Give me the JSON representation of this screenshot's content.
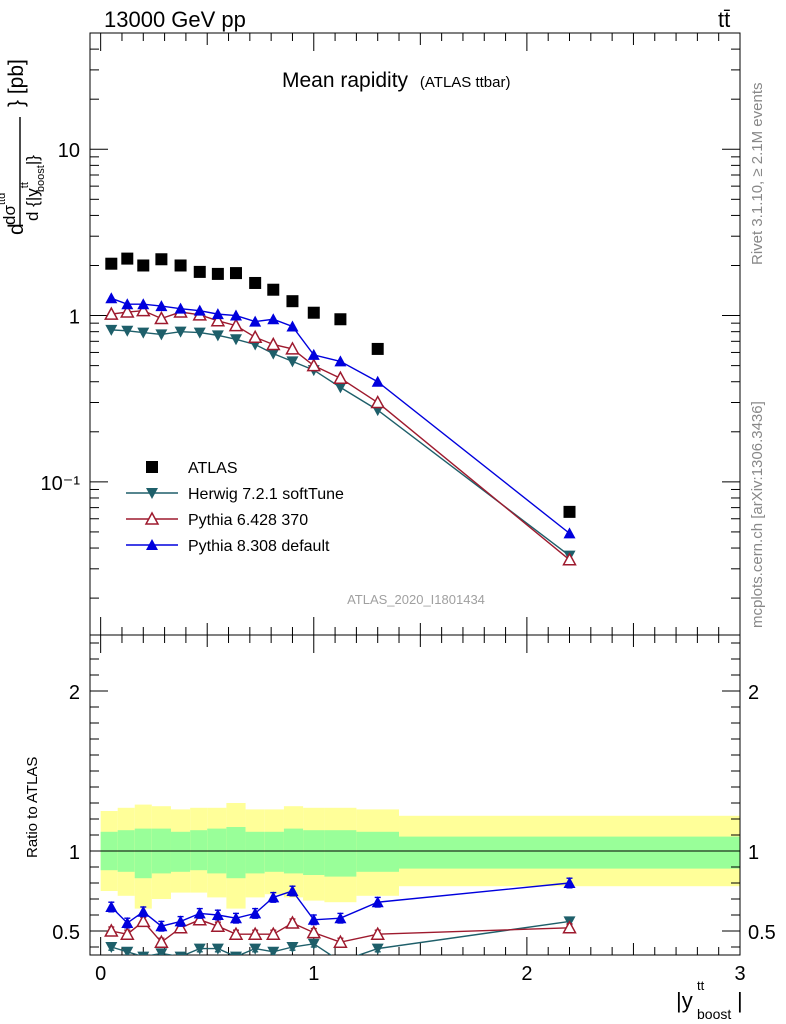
{
  "header": {
    "left": "13000 GeV pp",
    "right": "tt̄"
  },
  "side_labels": {
    "rivet": "Rivet 3.1.10, ≥ 2.1M events",
    "mcplots": "mcplots.cern.ch [arXiv:1306.3436]"
  },
  "analysis_id": "ATLAS_2020_I1801434",
  "colors": {
    "data": "#000000",
    "herwig": "#1e5f6a",
    "pythia6": "#9e1a2e",
    "pythia8": "#0000dd",
    "band_inner": "#99ff99",
    "band_outer": "#ffff99"
  },
  "chart_data": [
    {
      "type": "scatter",
      "title": "Mean rapidity",
      "title_small": "(ATLAS ttbar)",
      "ylabel": "d⟨dσ^{tt}⟩ / d{|y^{tt}_{boost}|} [pb]",
      "yscale": "log",
      "ylim": [
        0.012,
        50
      ],
      "xlim": [
        -0.05,
        3.0
      ],
      "y_tick_labels": [
        "10⁻¹",
        "1",
        "10"
      ],
      "legend_position": "lower-left",
      "x": [
        0.05,
        0.125,
        0.2,
        0.285,
        0.375,
        0.465,
        0.55,
        0.635,
        0.725,
        0.81,
        0.9,
        1.0,
        1.125,
        1.3,
        2.2
      ],
      "series": [
        {
          "name": "ATLAS",
          "marker": "square",
          "values": [
            2.05,
            2.2,
            2.0,
            2.18,
            2.0,
            1.83,
            1.78,
            1.8,
            1.57,
            1.43,
            1.22,
            1.04,
            0.95,
            0.63,
            0.066
          ]
        },
        {
          "name": "Herwig 7.2.1 softTune",
          "marker": "triangle-down",
          "values": [
            0.82,
            0.81,
            0.79,
            0.77,
            0.8,
            0.79,
            0.76,
            0.72,
            0.67,
            0.59,
            0.53,
            0.47,
            0.37,
            0.27,
            0.036
          ]
        },
        {
          "name": "Pythia 6.428 370",
          "marker": "triangle-up-open",
          "values": [
            1.02,
            1.05,
            1.07,
            0.96,
            1.05,
            1.01,
            0.93,
            0.87,
            0.74,
            0.67,
            0.63,
            0.5,
            0.42,
            0.3,
            0.034
          ]
        },
        {
          "name": "Pythia 8.308 default",
          "marker": "triangle-up",
          "values": [
            1.27,
            1.17,
            1.17,
            1.14,
            1.1,
            1.07,
            1.02,
            1.0,
            0.92,
            0.95,
            0.86,
            0.58,
            0.53,
            0.4,
            0.049
          ]
        }
      ]
    },
    {
      "type": "line",
      "ylabel": "Ratio to ATLAS",
      "xlabel": "|y^{tt}_{boost}|",
      "ylim": [
        0.35,
        2.35
      ],
      "xlim": [
        -0.05,
        3.0
      ],
      "x_tick_labels": [
        "0",
        "1",
        "2",
        "3"
      ],
      "y_tick_labels": [
        "0.5",
        "1",
        "2"
      ],
      "bins": [
        [
          0.0,
          0.08
        ],
        [
          0.08,
          0.16
        ],
        [
          0.16,
          0.24
        ],
        [
          0.24,
          0.33
        ],
        [
          0.33,
          0.42
        ],
        [
          0.42,
          0.5
        ],
        [
          0.5,
          0.59
        ],
        [
          0.59,
          0.68
        ],
        [
          0.68,
          0.77
        ],
        [
          0.77,
          0.86
        ],
        [
          0.86,
          0.95
        ],
        [
          0.95,
          1.05
        ],
        [
          1.05,
          1.2
        ],
        [
          1.2,
          1.4
        ],
        [
          1.4,
          3.0
        ]
      ],
      "band_inner": [
        [
          0.88,
          1.12
        ],
        [
          0.87,
          1.13
        ],
        [
          0.83,
          1.14
        ],
        [
          0.86,
          1.14
        ],
        [
          0.87,
          1.12
        ],
        [
          0.88,
          1.13
        ],
        [
          0.86,
          1.14
        ],
        [
          0.83,
          1.15
        ],
        [
          0.86,
          1.12
        ],
        [
          0.87,
          1.12
        ],
        [
          0.86,
          1.14
        ],
        [
          0.85,
          1.13
        ],
        [
          0.84,
          1.13
        ],
        [
          0.87,
          1.12
        ],
        [
          0.89,
          1.09
        ]
      ],
      "band_outer": [
        [
          0.75,
          1.25
        ],
        [
          0.72,
          1.27
        ],
        [
          0.64,
          1.29
        ],
        [
          0.7,
          1.28
        ],
        [
          0.74,
          1.26
        ],
        [
          0.74,
          1.27
        ],
        [
          0.71,
          1.27
        ],
        [
          0.64,
          1.3
        ],
        [
          0.71,
          1.26
        ],
        [
          0.73,
          1.26
        ],
        [
          0.71,
          1.28
        ],
        [
          0.69,
          1.27
        ],
        [
          0.68,
          1.27
        ],
        [
          0.72,
          1.26
        ],
        [
          0.78,
          1.22
        ]
      ],
      "series": [
        {
          "name": "Herwig 7.2.1 softTune",
          "values": [
            0.4,
            0.37,
            0.34,
            0.36,
            0.34,
            0.39,
            0.39,
            0.34,
            0.39,
            0.37,
            0.4,
            0.42,
            0.31,
            0.39,
            0.56
          ],
          "errors": [
            0.02,
            0.02,
            0.02,
            0.02,
            0.02,
            0.02,
            0.02,
            0.02,
            0.02,
            0.02,
            0.02,
            0.02,
            0.02,
            0.02,
            0.02
          ]
        },
        {
          "name": "Pythia 6.428 370",
          "values": [
            0.5,
            0.48,
            0.56,
            0.43,
            0.52,
            0.57,
            0.53,
            0.48,
            0.48,
            0.48,
            0.55,
            0.49,
            0.43,
            0.48,
            0.52
          ],
          "errors": [
            0.025,
            0.025,
            0.025,
            0.025,
            0.025,
            0.025,
            0.025,
            0.025,
            0.025,
            0.025,
            0.025,
            0.025,
            0.025,
            0.025,
            0.025
          ]
        },
        {
          "name": "Pythia 8.308 default",
          "values": [
            0.65,
            0.55,
            0.62,
            0.53,
            0.56,
            0.61,
            0.6,
            0.58,
            0.61,
            0.71,
            0.75,
            0.57,
            0.58,
            0.68,
            0.8
          ],
          "errors": [
            0.03,
            0.03,
            0.03,
            0.03,
            0.03,
            0.03,
            0.03,
            0.03,
            0.03,
            0.03,
            0.03,
            0.03,
            0.03,
            0.03,
            0.03
          ]
        }
      ]
    }
  ]
}
